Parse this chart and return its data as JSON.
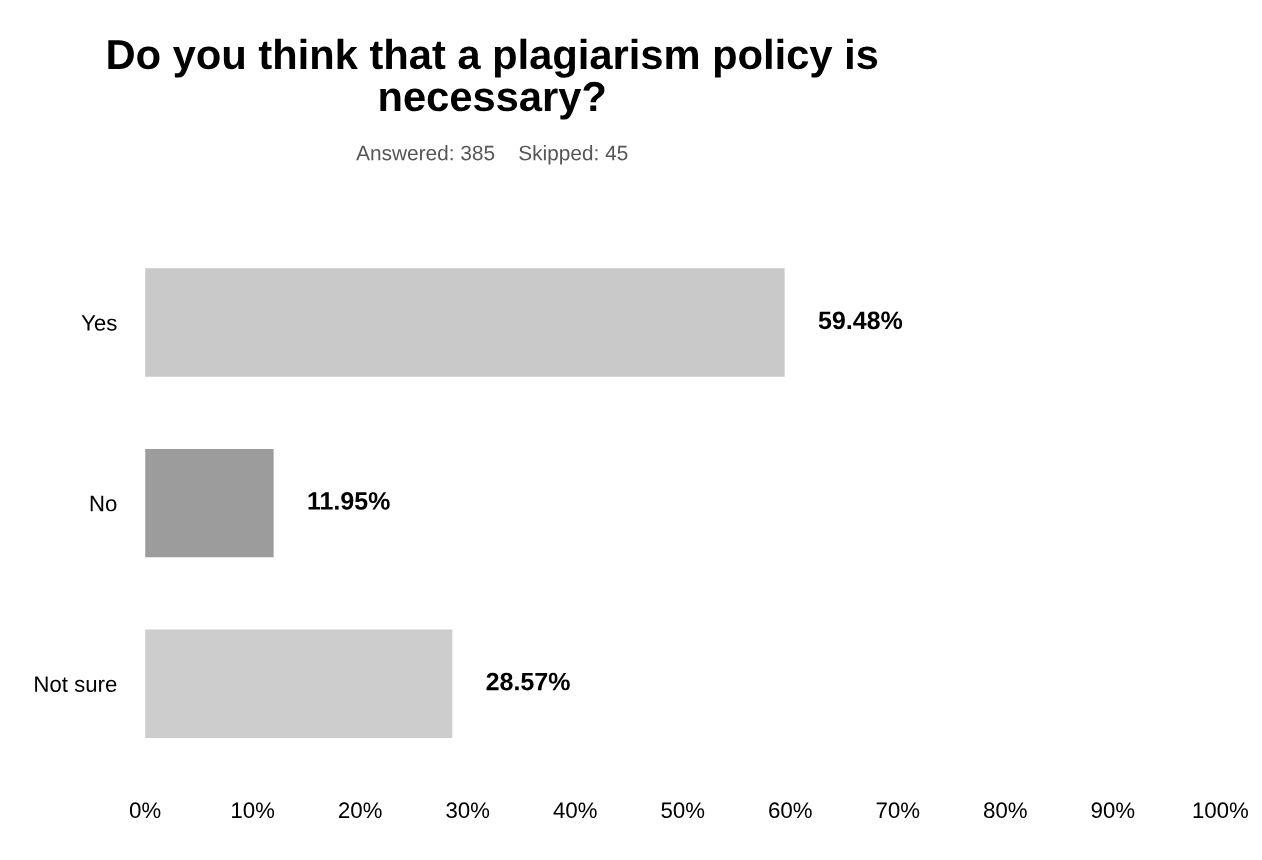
{
  "chart_data": {
    "type": "bar",
    "orientation": "horizontal",
    "title": "Do you think that a plagiarism policy is\nnecessary?",
    "subtitle": "Answered: 385    Skipped: 45",
    "categories": [
      "Yes",
      "No",
      "Not sure"
    ],
    "values": [
      59.48,
      11.95,
      28.57
    ],
    "colors": [
      "#c9c9c9",
      "#9c9c9c",
      "#cdcdcd"
    ],
    "value_labels": [
      "59.48%",
      "11.95%",
      "28.57%"
    ],
    "xlim": [
      0,
      100
    ],
    "xticks": [
      {
        "value": 0,
        "label": "0%"
      },
      {
        "value": 10,
        "label": "10%"
      },
      {
        "value": 20,
        "label": "20%"
      },
      {
        "value": 30,
        "label": "30%"
      },
      {
        "value": 40,
        "label": "40%"
      },
      {
        "value": 50,
        "label": "50%"
      },
      {
        "value": 60,
        "label": "60%"
      },
      {
        "value": 70,
        "label": "70%"
      },
      {
        "value": 80,
        "label": "80%"
      },
      {
        "value": 90,
        "label": "90%"
      },
      {
        "value": 100,
        "label": "100%"
      }
    ],
    "grid": false,
    "legend": false
  }
}
